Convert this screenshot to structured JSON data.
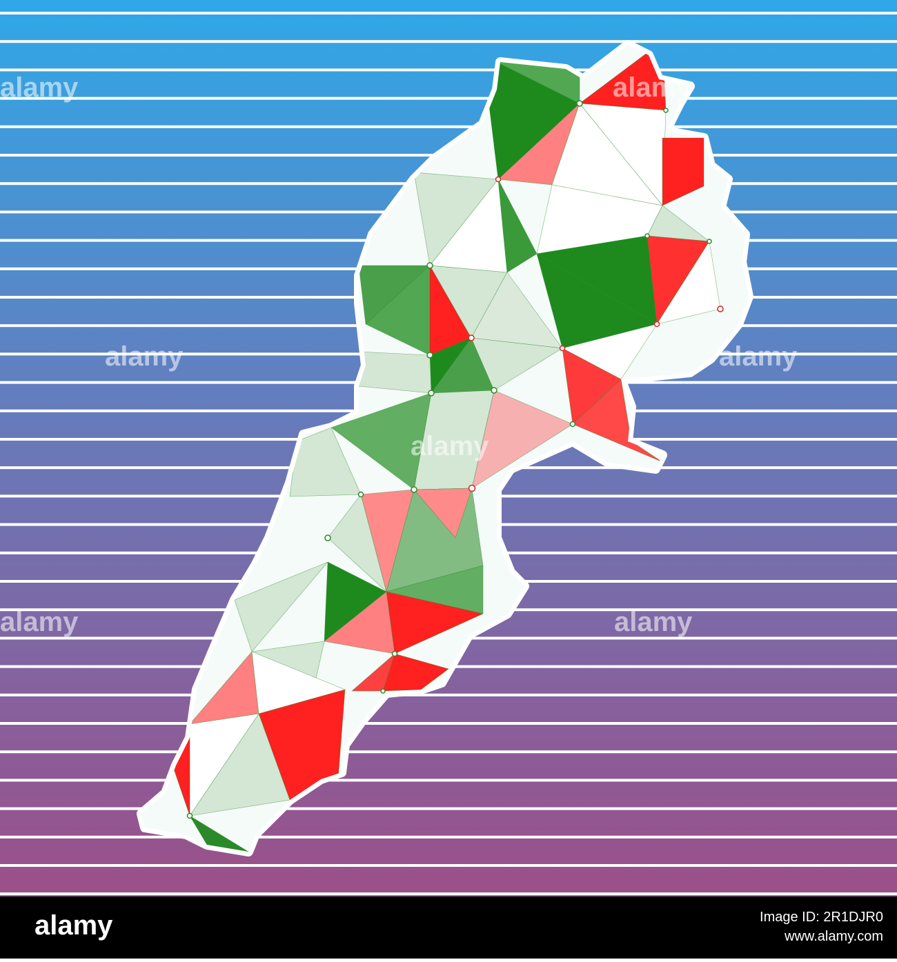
{
  "watermark": "alamy",
  "footer": {
    "logo": "alamy",
    "image_id": "Image ID: 2R1DJR0",
    "site": "www.alamy.com"
  }
}
